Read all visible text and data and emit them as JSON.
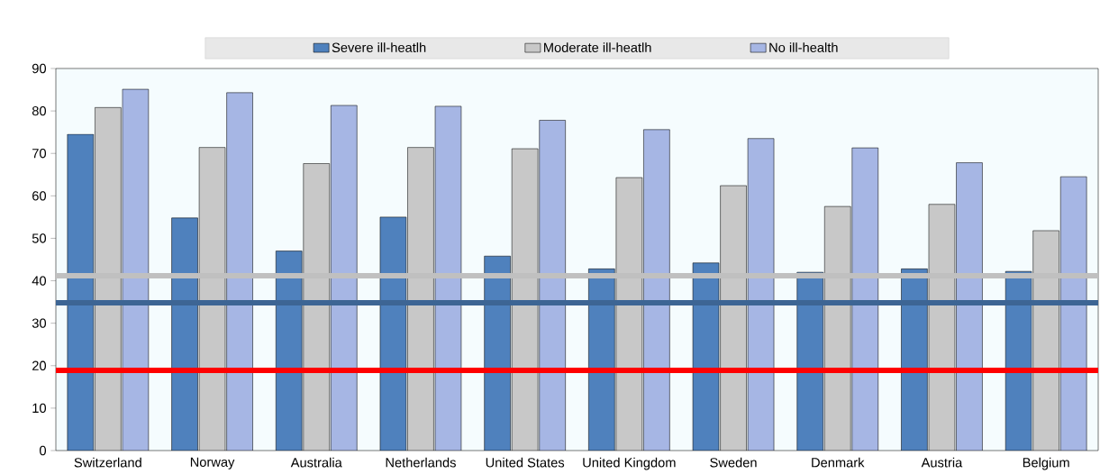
{
  "chart_data": {
    "type": "bar",
    "categories": [
      "Switzerland",
      "Norway",
      "Australia",
      "Netherlands",
      "United States",
      "United Kingdom",
      "Sweden",
      "Denmark",
      "Austria",
      "Belgium"
    ],
    "series": [
      {
        "name": "Severe ill-heatlh",
        "color": "#4f81bd",
        "values": [
          74.5,
          54.8,
          47,
          55,
          45.8,
          42.8,
          44.2,
          42,
          42.8,
          42.2
        ]
      },
      {
        "name": "Moderate ill-heatlh",
        "color": "#c8c8c8",
        "values": [
          80.8,
          71.4,
          67.6,
          71.4,
          71.1,
          64.3,
          62.4,
          57.5,
          58,
          51.8
        ]
      },
      {
        "name": "No ill-health",
        "color": "#a6b6e4",
        "values": [
          85.1,
          84.3,
          81.3,
          81.1,
          77.8,
          75.6,
          73.5,
          71.3,
          67.8,
          64.5
        ]
      }
    ],
    "ylim": [
      0,
      90
    ],
    "yticks": [
      0,
      10,
      20,
      30,
      40,
      50,
      60,
      70,
      80,
      90
    ],
    "ref_lines": [
      {
        "axis": "y",
        "value": 41.2,
        "color": "#c0c0c0"
      },
      {
        "axis": "y",
        "value": 34.8,
        "color": "#3d6594"
      },
      {
        "axis": "y",
        "value": 18.9,
        "color": "#ff0000"
      }
    ],
    "legend": "top",
    "grid": false
  }
}
